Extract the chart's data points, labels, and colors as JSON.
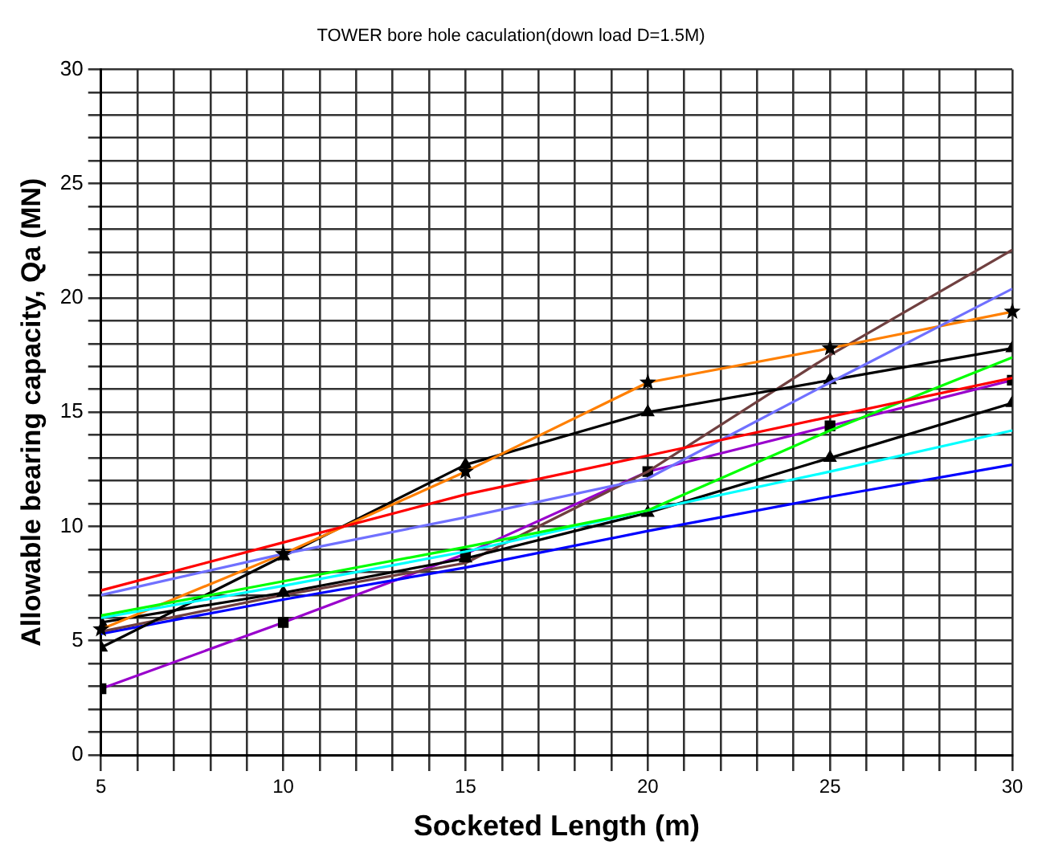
{
  "chart_data": {
    "type": "line",
    "title": "TOWER bore hole caculation(down load D=1.5M)",
    "xlabel": "Socketed Length (m)",
    "ylabel": "Allowable bearing capacity, Qa (MN)",
    "x": [
      5,
      10,
      15,
      20,
      25,
      30
    ],
    "series": [
      {
        "color": "#ff0000",
        "values": [
          7.2,
          9.3,
          11.4,
          13.1,
          14.8,
          16.5
        ]
      },
      {
        "color": "#7070ff",
        "values": [
          7.0,
          8.8,
          10.4,
          12.1,
          16.3,
          20.4
        ]
      },
      {
        "color": "#00ff00",
        "values": [
          6.1,
          7.6,
          9.1,
          10.7,
          14.2,
          17.4
        ]
      },
      {
        "color": "#00ffff",
        "values": [
          6.0,
          7.4,
          8.9,
          10.7,
          12.4,
          14.2
        ]
      },
      {
        "color": "#ff7f00",
        "marker": "star",
        "values": [
          5.5,
          8.8,
          12.4,
          16.3,
          17.8,
          19.4
        ]
      },
      {
        "color": "#000000",
        "marker": "triangle",
        "values": [
          4.7,
          8.7,
          12.7,
          15.0,
          16.4,
          17.8
        ]
      },
      {
        "color": "#000000",
        "marker": "triangle",
        "values": [
          5.8,
          7.1,
          8.6,
          10.6,
          13.0,
          15.4
        ]
      },
      {
        "color": "#704040",
        "values": [
          5.4,
          7.0,
          8.4,
          12.4,
          17.5,
          22.1
        ]
      },
      {
        "color": "#0000ff",
        "values": [
          5.3,
          6.8,
          8.2,
          9.8,
          11.3,
          12.7
        ]
      },
      {
        "color": "#9900cc",
        "marker": "square",
        "values": [
          2.9,
          5.8,
          8.8,
          12.4,
          14.4,
          16.4
        ]
      }
    ],
    "xlim": [
      5,
      30
    ],
    "ylim": [
      0,
      30
    ],
    "xticks": [
      5,
      {
        "value": 6,
        "label": null
      },
      {
        "value": 7,
        "label": null
      },
      {
        "value": 8,
        "label": null
      },
      {
        "value": 9,
        "label": null
      },
      10,
      {
        "value": 11,
        "label": null
      },
      {
        "value": 12,
        "label": null
      },
      {
        "value": 13,
        "label": null
      },
      {
        "value": 14,
        "label": null
      },
      15,
      {
        "value": 16,
        "label": null
      },
      {
        "value": 17,
        "label": null
      },
      {
        "value": 18,
        "label": null
      },
      {
        "value": 19,
        "label": null
      },
      20,
      {
        "value": 21,
        "label": null
      },
      {
        "value": 22,
        "label": null
      },
      {
        "value": 23,
        "label": null
      },
      {
        "value": 24,
        "label": null
      },
      25,
      {
        "value": 26,
        "label": null
      },
      {
        "value": 27,
        "label": null
      },
      {
        "value": 28,
        "label": null
      },
      {
        "value": 29,
        "label": null
      },
      30
    ],
    "yticks": [
      0,
      {
        "value": 1,
        "label": null
      },
      {
        "value": 2,
        "label": null
      },
      {
        "value": 3,
        "label": null
      },
      {
        "value": 4,
        "label": null
      },
      5,
      {
        "value": 6,
        "label": null
      },
      {
        "value": 7,
        "label": null
      },
      {
        "value": 8,
        "label": null
      },
      {
        "value": 9,
        "label": null
      },
      10,
      {
        "value": 11,
        "label": null
      },
      {
        "value": 12,
        "label": null
      },
      {
        "value": 13,
        "label": null
      },
      {
        "value": 14,
        "label": null
      },
      15,
      {
        "value": 16,
        "label": null
      },
      {
        "value": 17,
        "label": null
      },
      {
        "value": 18,
        "label": null
      },
      {
        "value": 19,
        "label": null
      },
      20,
      {
        "value": 21,
        "label": null
      },
      {
        "value": 22,
        "label": null
      },
      {
        "value": 23,
        "label": null
      },
      {
        "value": 24,
        "label": null
      },
      25,
      {
        "value": 26,
        "label": null
      },
      {
        "value": 27,
        "label": null
      },
      {
        "value": 28,
        "label": null
      },
      {
        "value": 29,
        "label": null
      },
      30
    ],
    "grid": true,
    "legend": false
  }
}
